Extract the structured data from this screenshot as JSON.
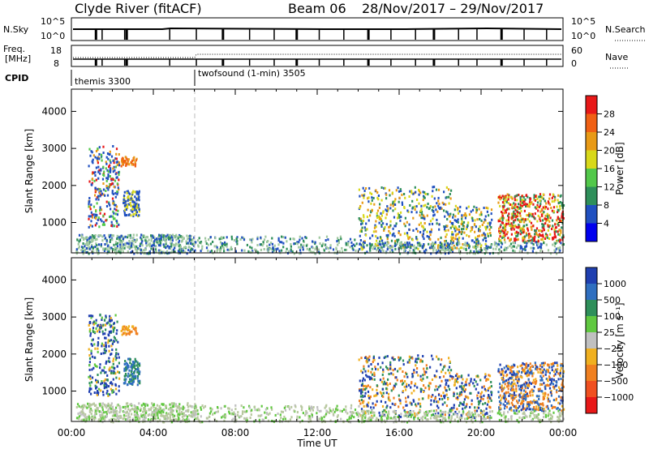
{
  "header": {
    "station": "Clyde River (fitACF)",
    "beam": "Beam 06",
    "date_range": "28/Nov/2017 – 29/Nov/2017"
  },
  "summary": {
    "nsky_label": "N.Sky",
    "nsky_ticks": [
      "10^5",
      "10^0"
    ],
    "nsearch_label": "N.Search",
    "freq_label_1": "Freq.",
    "freq_label_2": "[MHz]",
    "freq_ticks": [
      "18",
      "8"
    ],
    "nave_label": "Nave",
    "nave_ticks": [
      "60",
      "0"
    ],
    "cpid_label": "CPID",
    "cpid_segments": [
      "themis 3300",
      "twofsound (1-min) 3505"
    ]
  },
  "chart_data": [
    {
      "type": "heatmap",
      "name": "power",
      "ylabel": "Slant Range [km]",
      "xlabel": "Time UT",
      "x_ticks": [
        "00:00",
        "04:00",
        "08:00",
        "12:00",
        "16:00",
        "20:00",
        "00:00"
      ],
      "xlim_hours": [
        0,
        24
      ],
      "y_ticks": [
        1000,
        2000,
        3000,
        4000
      ],
      "ylim": [
        180,
        4600
      ],
      "colorbar_label": "Power [dB]",
      "colorbar_ticks": [
        "28",
        "24",
        "20",
        "16",
        "12",
        "8",
        "4"
      ],
      "colorbar_colors": [
        "#0000ee",
        "#2050c0",
        "#2e8f5a",
        "#52c84a",
        "#d8d81a",
        "#e89a16",
        "#f06014",
        "#e81818"
      ],
      "mode_change_hours": 6
    },
    {
      "type": "heatmap",
      "name": "velocity",
      "ylabel": "Slant Range [km]",
      "xlabel": "Time UT",
      "x_ticks": [
        "00:00",
        "04:00",
        "08:00",
        "12:00",
        "16:00",
        "20:00",
        "00:00"
      ],
      "xlim_hours": [
        0,
        24
      ],
      "y_ticks": [
        1000,
        2000,
        3000,
        4000
      ],
      "ylim": [
        180,
        4600
      ],
      "colorbar_label": "Velocity [m s⁻¹]",
      "colorbar_ticks": [
        "1000",
        "500",
        "100",
        "25",
        "−25",
        "−100",
        "−500",
        "−1000"
      ],
      "colorbar_colors": [
        "#1f3fb0",
        "#2f6fc0",
        "#2e8f5a",
        "#60c840",
        "#c0c0c0",
        "#f0b020",
        "#f08020",
        "#f05020",
        "#e81818"
      ],
      "mode_change_hours": 6
    }
  ],
  "axis": {
    "time_label": "Time UT"
  }
}
